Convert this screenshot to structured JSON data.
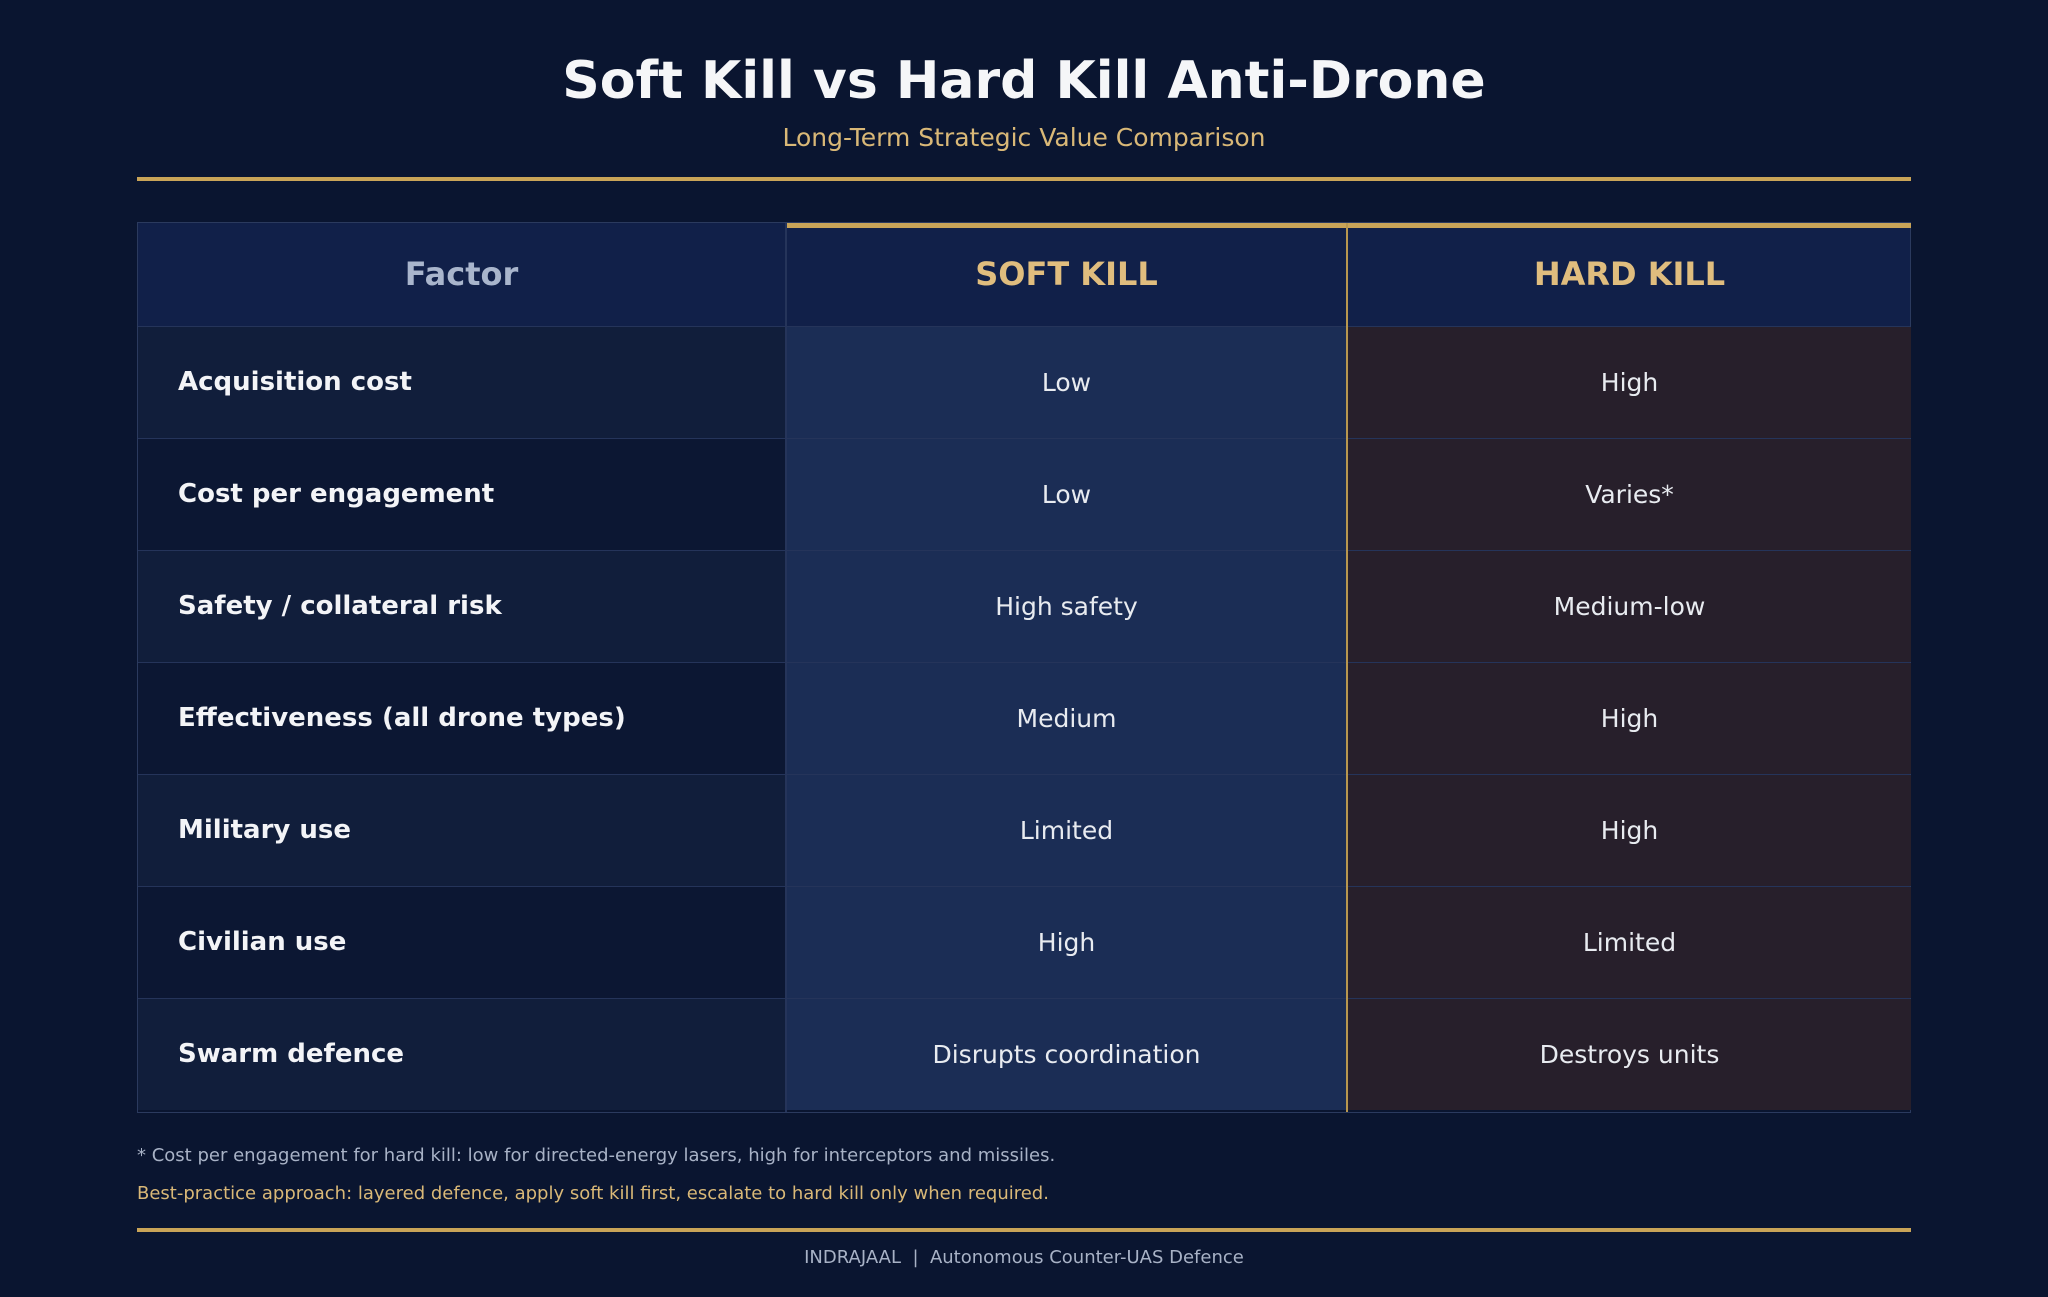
{
  "chart_data": {
    "type": "table",
    "title": "Soft Kill vs Hard Kill Anti-Drone",
    "subtitle": "Long-Term Strategic Value Comparison",
    "columns": [
      "Factor",
      "SOFT KILL",
      "HARD KILL"
    ],
    "rows": [
      {
        "factor": "Acquisition cost",
        "soft": "Low",
        "hard": "High"
      },
      {
        "factor": "Cost per engagement",
        "soft": "Low",
        "hard": "Varies*"
      },
      {
        "factor": "Safety / collateral risk",
        "soft": "High safety",
        "hard": "Medium-low"
      },
      {
        "factor": "Effectiveness (all drone types)",
        "soft": "Medium",
        "hard": "High"
      },
      {
        "factor": "Military use",
        "soft": "Limited",
        "hard": "High"
      },
      {
        "factor": "Civilian use",
        "soft": "High",
        "hard": "Limited"
      },
      {
        "factor": "Swarm defence",
        "soft": "Disrupts coordination",
        "hard": "Destroys units"
      }
    ]
  },
  "notes": {
    "footnote": "* Cost per engagement for hard kill: low for directed-energy lasers, high for interceptors and missiles.",
    "best_practice": "Best-practice approach: layered defence, apply soft kill first, escalate to hard kill only when required."
  },
  "footer": "INDRAJAAL  |  Autonomous Counter-UAS Defence",
  "colors": {
    "background": "#0a1530",
    "accent_gold": "#c9a458",
    "soft_column": "#1b2d55",
    "hard_column": "#271f2b"
  }
}
